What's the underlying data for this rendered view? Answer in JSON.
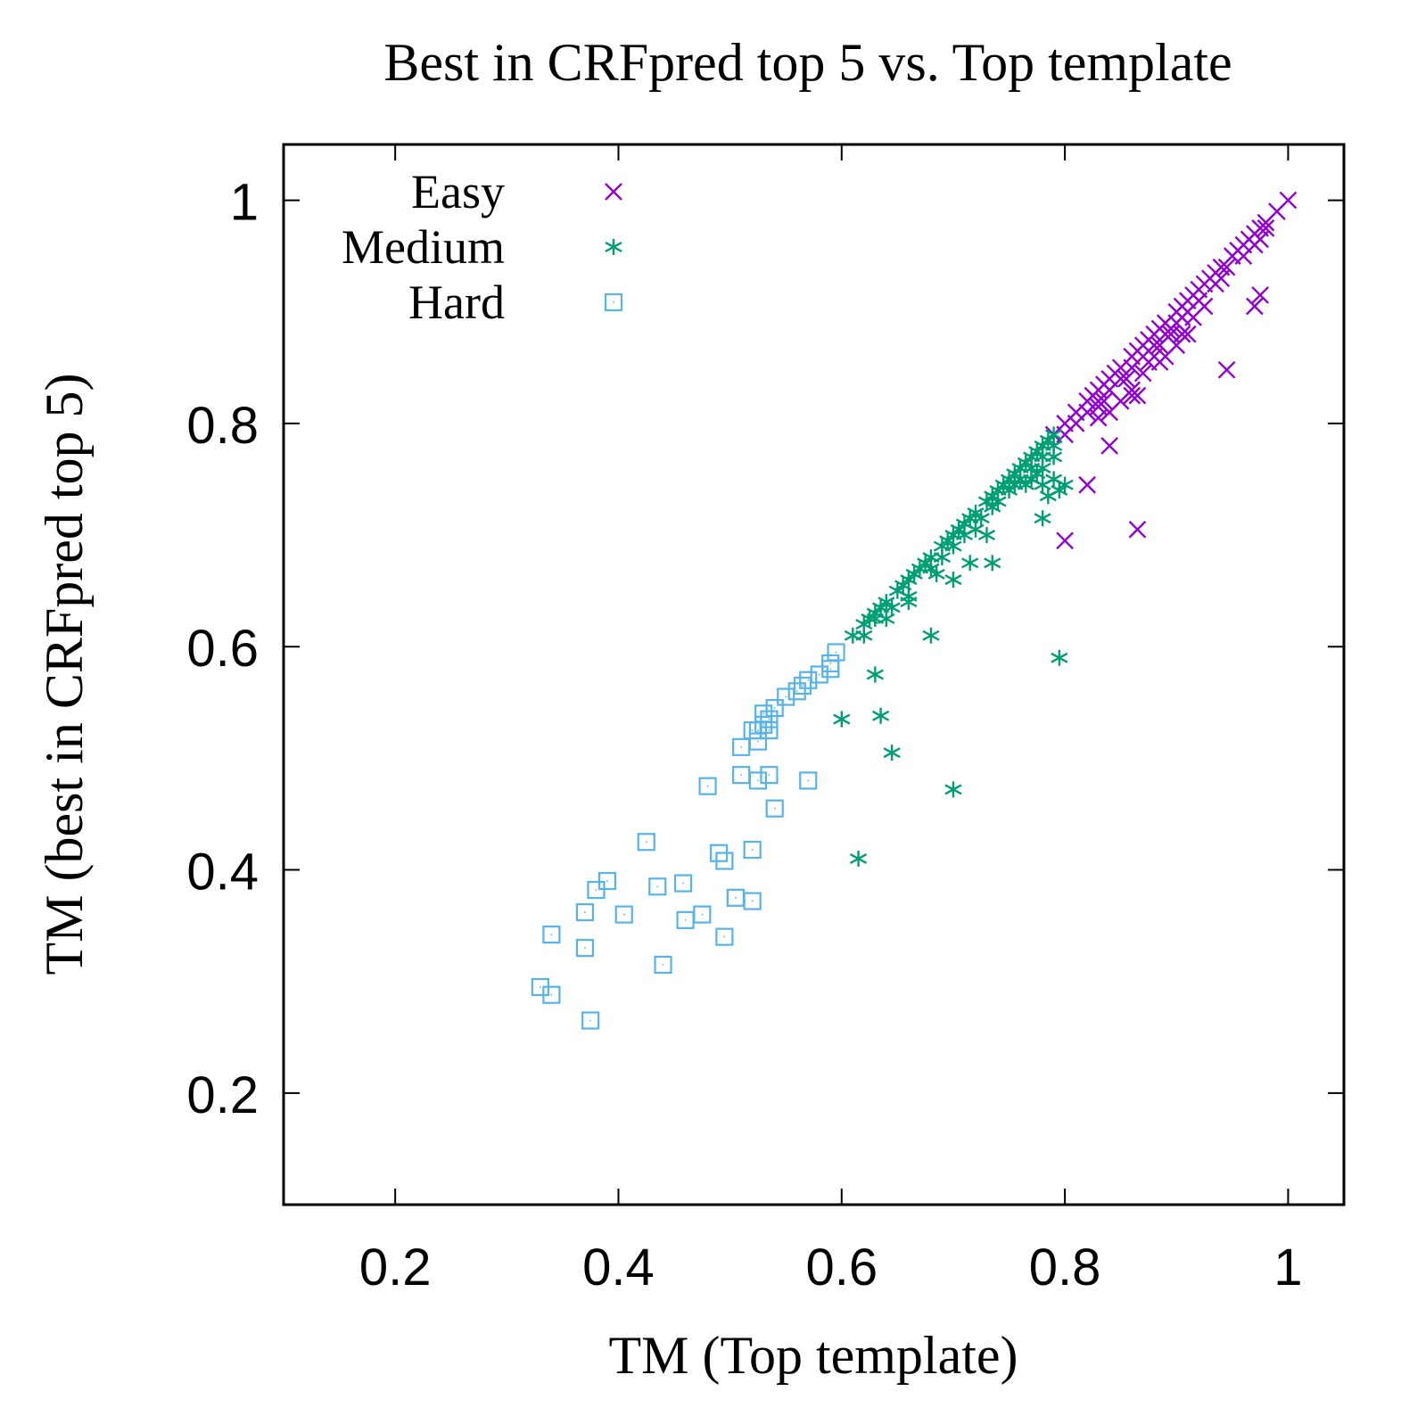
{
  "chart_data": {
    "type": "scatter",
    "title": "Best in CRFpred top 5 vs. Top template",
    "xlabel": "TM (Top template)",
    "ylabel": "TM (best in CRFpred top 5)",
    "xlim": [
      0.1,
      1.05
    ],
    "ylim": [
      0.1,
      1.05
    ],
    "xticks": [
      0.2,
      0.4,
      0.6,
      0.8,
      1.0
    ],
    "xtick_labels": [
      "0.2",
      "0.4",
      "0.6",
      "0.8",
      "1"
    ],
    "yticks": [
      0.2,
      0.4,
      0.6,
      0.8,
      1.0
    ],
    "ytick_labels": [
      "0.2",
      "0.4",
      "0.6",
      "0.8",
      "1"
    ],
    "grid": false,
    "legend_position": "top-left",
    "series": [
      {
        "name": "Easy",
        "color": "#9400d3",
        "marker": "x",
        "points": [
          [
            0.79,
            0.79
          ],
          [
            0.8,
            0.8
          ],
          [
            0.81,
            0.81
          ],
          [
            0.82,
            0.82
          ],
          [
            0.83,
            0.83
          ],
          [
            0.84,
            0.84
          ],
          [
            0.85,
            0.85
          ],
          [
            0.86,
            0.86
          ],
          [
            0.87,
            0.87
          ],
          [
            0.88,
            0.88
          ],
          [
            0.89,
            0.89
          ],
          [
            0.9,
            0.9
          ],
          [
            0.91,
            0.91
          ],
          [
            0.92,
            0.92
          ],
          [
            0.93,
            0.93
          ],
          [
            0.94,
            0.94
          ],
          [
            0.95,
            0.95
          ],
          [
            0.96,
            0.96
          ],
          [
            0.97,
            0.97
          ],
          [
            0.98,
            0.98
          ],
          [
            0.99,
            0.99
          ],
          [
            1.0,
            1.0
          ],
          [
            0.905,
            0.905
          ],
          [
            0.915,
            0.915
          ],
          [
            0.925,
            0.925
          ],
          [
            0.935,
            0.935
          ],
          [
            0.885,
            0.885
          ],
          [
            0.875,
            0.875
          ],
          [
            0.865,
            0.865
          ],
          [
            0.845,
            0.845
          ],
          [
            0.835,
            0.835
          ],
          [
            0.825,
            0.825
          ],
          [
            0.955,
            0.955
          ],
          [
            0.965,
            0.965
          ],
          [
            0.975,
            0.975
          ],
          [
            0.945,
            0.94
          ],
          [
            0.9,
            0.89
          ],
          [
            0.89,
            0.88
          ],
          [
            0.88,
            0.87
          ],
          [
            0.87,
            0.86
          ],
          [
            0.86,
            0.85
          ],
          [
            0.85,
            0.84
          ],
          [
            0.84,
            0.83
          ],
          [
            0.83,
            0.82
          ],
          [
            0.91,
            0.9
          ],
          [
            0.92,
            0.91
          ],
          [
            0.94,
            0.93
          ],
          [
            0.96,
            0.95
          ],
          [
            0.97,
            0.96
          ],
          [
            0.98,
            0.975
          ],
          [
            0.975,
            0.965
          ],
          [
            0.935,
            0.925
          ],
          [
            0.905,
            0.895
          ],
          [
            0.895,
            0.885
          ],
          [
            0.82,
            0.81
          ],
          [
            0.81,
            0.8
          ],
          [
            0.8,
            0.79
          ],
          [
            0.86,
            0.83
          ],
          [
            0.865,
            0.825
          ],
          [
            0.83,
            0.815
          ],
          [
            0.88,
            0.86
          ],
          [
            0.9,
            0.87
          ],
          [
            0.91,
            0.88
          ],
          [
            0.89,
            0.86
          ],
          [
            0.885,
            0.855
          ],
          [
            0.87,
            0.845
          ],
          [
            0.86,
            0.825
          ],
          [
            0.83,
            0.805
          ],
          [
            0.84,
            0.78
          ],
          [
            0.82,
            0.745
          ],
          [
            0.8,
            0.695
          ],
          [
            0.865,
            0.705
          ],
          [
            0.945,
            0.848
          ],
          [
            0.975,
            0.915
          ],
          [
            0.97,
            0.905
          ],
          [
            0.885,
            0.87
          ],
          [
            0.895,
            0.88
          ],
          [
            0.905,
            0.88
          ],
          [
            0.925,
            0.905
          ],
          [
            0.915,
            0.895
          ],
          [
            0.85,
            0.82
          ],
          [
            0.84,
            0.81
          ],
          [
            0.835,
            0.82
          ],
          [
            0.855,
            0.84
          ],
          [
            0.875,
            0.855
          ]
        ]
      },
      {
        "name": "Medium",
        "color": "#009e73",
        "marker": "asterisk",
        "points": [
          [
            0.61,
            0.61
          ],
          [
            0.62,
            0.62
          ],
          [
            0.63,
            0.63
          ],
          [
            0.64,
            0.64
          ],
          [
            0.65,
            0.65
          ],
          [
            0.66,
            0.66
          ],
          [
            0.67,
            0.67
          ],
          [
            0.68,
            0.68
          ],
          [
            0.69,
            0.69
          ],
          [
            0.7,
            0.7
          ],
          [
            0.71,
            0.71
          ],
          [
            0.72,
            0.72
          ],
          [
            0.73,
            0.73
          ],
          [
            0.74,
            0.74
          ],
          [
            0.75,
            0.75
          ],
          [
            0.76,
            0.76
          ],
          [
            0.77,
            0.77
          ],
          [
            0.78,
            0.78
          ],
          [
            0.79,
            0.79
          ],
          [
            0.625,
            0.625
          ],
          [
            0.635,
            0.635
          ],
          [
            0.655,
            0.655
          ],
          [
            0.675,
            0.675
          ],
          [
            0.695,
            0.695
          ],
          [
            0.705,
            0.705
          ],
          [
            0.715,
            0.715
          ],
          [
            0.735,
            0.735
          ],
          [
            0.745,
            0.745
          ],
          [
            0.755,
            0.755
          ],
          [
            0.765,
            0.765
          ],
          [
            0.775,
            0.775
          ],
          [
            0.785,
            0.785
          ],
          [
            0.78,
            0.77
          ],
          [
            0.77,
            0.76
          ],
          [
            0.76,
            0.75
          ],
          [
            0.75,
            0.74
          ],
          [
            0.74,
            0.73
          ],
          [
            0.79,
            0.78
          ],
          [
            0.78,
            0.76
          ],
          [
            0.77,
            0.75
          ],
          [
            0.79,
            0.77
          ],
          [
            0.79,
            0.75
          ],
          [
            0.78,
            0.745
          ],
          [
            0.785,
            0.735
          ],
          [
            0.775,
            0.755
          ],
          [
            0.765,
            0.745
          ],
          [
            0.755,
            0.745
          ],
          [
            0.735,
            0.725
          ],
          [
            0.725,
            0.715
          ],
          [
            0.72,
            0.705
          ],
          [
            0.71,
            0.7
          ],
          [
            0.7,
            0.69
          ],
          [
            0.69,
            0.68
          ],
          [
            0.68,
            0.67
          ],
          [
            0.665,
            0.665
          ],
          [
            0.66,
            0.645
          ],
          [
            0.645,
            0.635
          ],
          [
            0.63,
            0.625
          ],
          [
            0.64,
            0.625
          ],
          [
            0.62,
            0.61
          ],
          [
            0.7,
            0.66
          ],
          [
            0.685,
            0.665
          ],
          [
            0.715,
            0.675
          ],
          [
            0.735,
            0.675
          ],
          [
            0.73,
            0.7
          ],
          [
            0.78,
            0.715
          ],
          [
            0.66,
            0.64
          ],
          [
            0.68,
            0.61
          ],
          [
            0.8,
            0.745
          ],
          [
            0.795,
            0.74
          ],
          [
            0.795,
            0.59
          ],
          [
            0.63,
            0.575
          ],
          [
            0.6,
            0.535
          ],
          [
            0.635,
            0.538
          ],
          [
            0.645,
            0.505
          ],
          [
            0.7,
            0.472
          ],
          [
            0.615,
            0.41
          ]
        ]
      },
      {
        "name": "Hard",
        "color": "#56b4e9",
        "marker": "square",
        "points": [
          [
            0.595,
            0.595
          ],
          [
            0.59,
            0.585
          ],
          [
            0.58,
            0.575
          ],
          [
            0.57,
            0.57
          ],
          [
            0.565,
            0.565
          ],
          [
            0.56,
            0.56
          ],
          [
            0.55,
            0.555
          ],
          [
            0.54,
            0.545
          ],
          [
            0.535,
            0.535
          ],
          [
            0.53,
            0.53
          ],
          [
            0.525,
            0.525
          ],
          [
            0.52,
            0.525
          ],
          [
            0.525,
            0.515
          ],
          [
            0.535,
            0.525
          ],
          [
            0.59,
            0.58
          ],
          [
            0.53,
            0.54
          ],
          [
            0.51,
            0.51
          ],
          [
            0.51,
            0.485
          ],
          [
            0.535,
            0.485
          ],
          [
            0.525,
            0.48
          ],
          [
            0.57,
            0.48
          ],
          [
            0.48,
            0.475
          ],
          [
            0.54,
            0.455
          ],
          [
            0.425,
            0.425
          ],
          [
            0.49,
            0.415
          ],
          [
            0.52,
            0.418
          ],
          [
            0.495,
            0.408
          ],
          [
            0.39,
            0.39
          ],
          [
            0.38,
            0.382
          ],
          [
            0.435,
            0.385
          ],
          [
            0.458,
            0.388
          ],
          [
            0.505,
            0.375
          ],
          [
            0.52,
            0.372
          ],
          [
            0.37,
            0.362
          ],
          [
            0.405,
            0.36
          ],
          [
            0.475,
            0.36
          ],
          [
            0.46,
            0.355
          ],
          [
            0.34,
            0.342
          ],
          [
            0.495,
            0.34
          ],
          [
            0.37,
            0.33
          ],
          [
            0.44,
            0.315
          ],
          [
            0.33,
            0.295
          ],
          [
            0.34,
            0.288
          ],
          [
            0.375,
            0.265
          ]
        ]
      }
    ]
  }
}
